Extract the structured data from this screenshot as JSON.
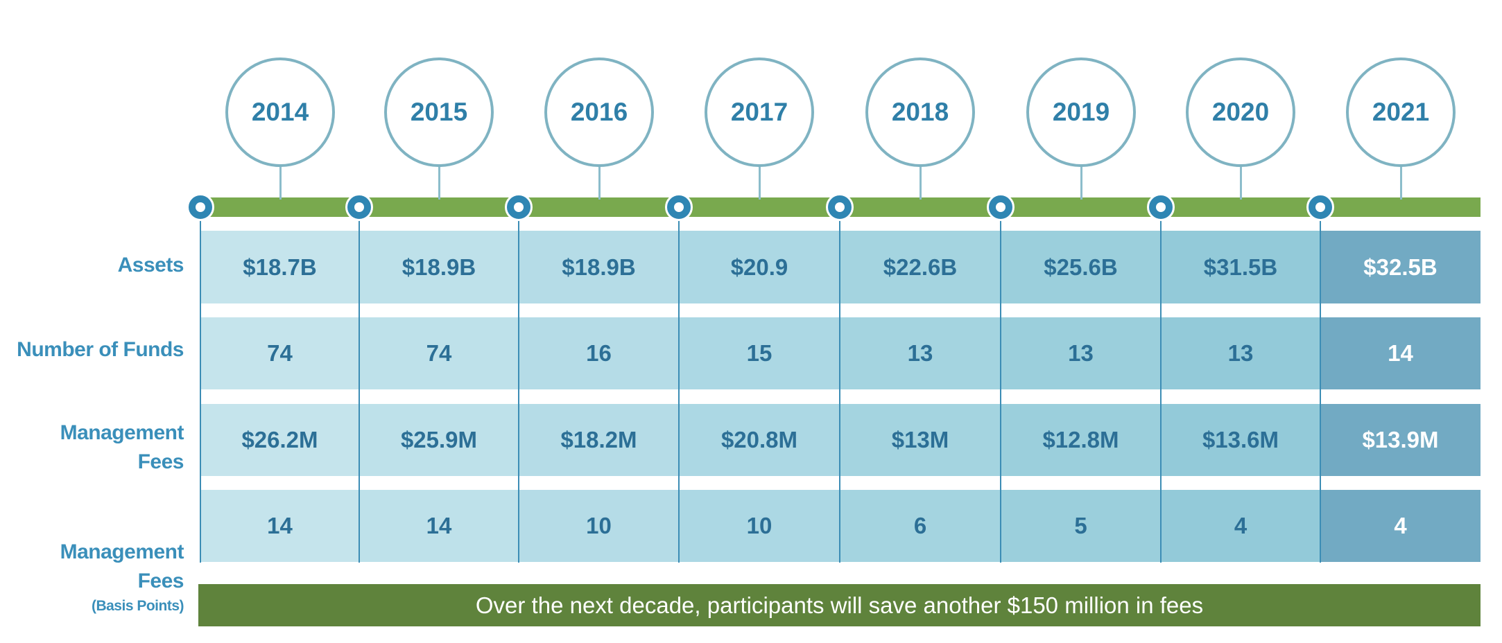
{
  "chart_data": {
    "type": "table",
    "columns": [
      "2014",
      "2015",
      "2016",
      "2017",
      "2018",
      "2019",
      "2020",
      "2021"
    ],
    "rows": [
      {
        "label": "Assets",
        "sublabel": "",
        "values": [
          "$18.7B",
          "$18.9B",
          "$18.9B",
          "$20.9",
          "$22.6B",
          "$25.6B",
          "$31.5B",
          "$32.5B"
        ]
      },
      {
        "label": "Number of Funds",
        "sublabel": "",
        "values": [
          "74",
          "74",
          "16",
          "15",
          "13",
          "13",
          "13",
          "14"
        ]
      },
      {
        "label": "Management Fees",
        "sublabel": "",
        "values": [
          "$26.2M",
          "$25.9M",
          "$18.2M",
          "$20.8M",
          "$13M",
          "$12.8M",
          "$13.6M",
          "$13.9M"
        ]
      },
      {
        "label": "Management Fees",
        "sublabel": "(Basis Points)",
        "values": [
          "14",
          "14",
          "10",
          "10",
          "6",
          "5",
          "4",
          "4"
        ]
      }
    ],
    "banner": "Over the next decade, participants will save another $150 million in fees"
  },
  "colors": {
    "column_fills": [
      "#c5e4ec",
      "#bee1ea",
      "#b5dce7",
      "#acd8e4",
      "#a4d4e0",
      "#9bcfdc",
      "#93cad9",
      "#72aac3"
    ],
    "timeline_green": "#79a94e",
    "banner_green": "#5f833c",
    "circle_border": "#7fb3c2",
    "year_text": "#2f7fa8",
    "node_blue": "#2f86b3",
    "label_blue": "#3a8fba",
    "value_text": "#2c6f96"
  }
}
